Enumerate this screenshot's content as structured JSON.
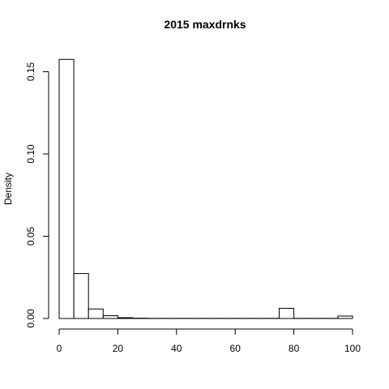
{
  "chart_data": {
    "type": "histogram",
    "title": "2015 maxdrnks",
    "xlabel": "",
    "ylabel": "Density",
    "xlim": [
      0,
      100
    ],
    "ylim": [
      0,
      0.16
    ],
    "x_ticks": [
      0,
      20,
      40,
      60,
      80,
      100
    ],
    "x_tick_labels": [
      "0",
      "20",
      "40",
      "60",
      "80",
      "100"
    ],
    "y_ticks": [
      0,
      0.05,
      0.1,
      0.15
    ],
    "y_tick_labels": [
      "0.00",
      "0.05",
      "0.10",
      "0.15"
    ],
    "bins": [
      {
        "x0": 0,
        "x1": 5,
        "density": 0.1575
      },
      {
        "x0": 5,
        "x1": 10,
        "density": 0.0273
      },
      {
        "x0": 10,
        "x1": 15,
        "density": 0.0058
      },
      {
        "x0": 15,
        "x1": 20,
        "density": 0.0017
      },
      {
        "x0": 20,
        "x1": 25,
        "density": 0.0005
      },
      {
        "x0": 25,
        "x1": 30,
        "density": 0.0002
      },
      {
        "x0": 30,
        "x1": 35,
        "density": 0.0001
      },
      {
        "x0": 35,
        "x1": 40,
        "density": 0.0001
      },
      {
        "x0": 40,
        "x1": 45,
        "density": 0.0001
      },
      {
        "x0": 45,
        "x1": 50,
        "density": 0.0001
      },
      {
        "x0": 50,
        "x1": 55,
        "density": 0.0001
      },
      {
        "x0": 55,
        "x1": 60,
        "density": 0.0001
      },
      {
        "x0": 60,
        "x1": 65,
        "density": 0.0001
      },
      {
        "x0": 65,
        "x1": 70,
        "density": 0.0001
      },
      {
        "x0": 70,
        "x1": 75,
        "density": 0.0001
      },
      {
        "x0": 75,
        "x1": 80,
        "density": 0.0062
      },
      {
        "x0": 80,
        "x1": 85,
        "density": 0.0001
      },
      {
        "x0": 85,
        "x1": 90,
        "density": 0.0001
      },
      {
        "x0": 90,
        "x1": 95,
        "density": 0.0001
      },
      {
        "x0": 95,
        "x1": 100,
        "density": 0.0015
      }
    ],
    "grid": false,
    "legend": "none"
  }
}
